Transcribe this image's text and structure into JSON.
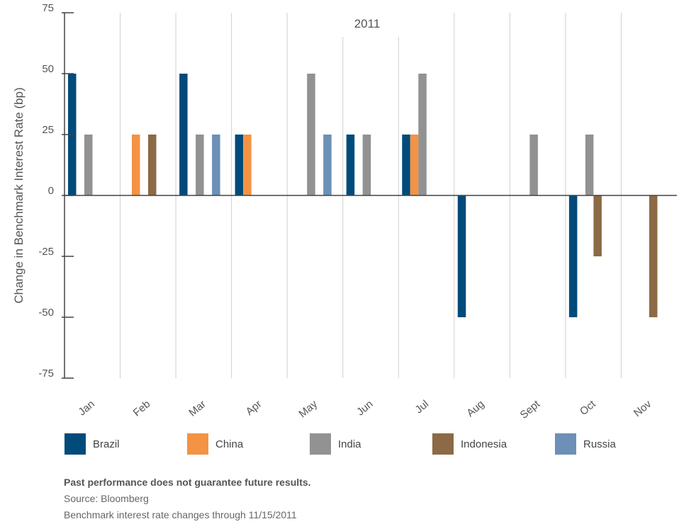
{
  "chart_data": {
    "type": "bar",
    "ylabel": "Change in Benchmark Interest Rate (bp)",
    "group_label": "2011",
    "categories": [
      "Jan",
      "Feb",
      "Mar",
      "Apr",
      "May",
      "Jun",
      "Jul",
      "Aug",
      "Sept",
      "Oct",
      "Nov"
    ],
    "ylim": [
      -75,
      75
    ],
    "yticks": [
      75,
      50,
      25,
      0,
      -25,
      -50,
      -75
    ],
    "ytick_labels": [
      "75",
      "50",
      "25",
      "0",
      "-25",
      "-50",
      "-75"
    ],
    "grid": "vertical separators between months",
    "legend_position": "bottom",
    "series": [
      {
        "name": "Brazil",
        "color": "#004b7a",
        "values": [
          50,
          0,
          50,
          25,
          0,
          25,
          25,
          -50,
          0,
          -50,
          0
        ]
      },
      {
        "name": "China",
        "color": "#f39343",
        "values": [
          0,
          25,
          0,
          25,
          0,
          0,
          25,
          0,
          0,
          0,
          0
        ]
      },
      {
        "name": "India",
        "color": "#929292",
        "values": [
          25,
          0,
          25,
          0,
          50,
          25,
          50,
          0,
          25,
          25,
          0
        ]
      },
      {
        "name": "Indonesia",
        "color": "#8b6a45",
        "values": [
          0,
          25,
          0,
          0,
          0,
          0,
          0,
          0,
          0,
          -25,
          -50
        ]
      },
      {
        "name": "Russia",
        "color": "#6c90b6",
        "values": [
          0,
          0,
          25,
          0,
          25,
          0,
          0,
          0,
          0,
          0,
          0
        ]
      }
    ]
  },
  "notes": {
    "disclaimer": "Past performance does not guarantee future results.",
    "source": "Source: Bloomberg",
    "footnote": "Benchmark interest rate changes through 11/15/2011"
  }
}
